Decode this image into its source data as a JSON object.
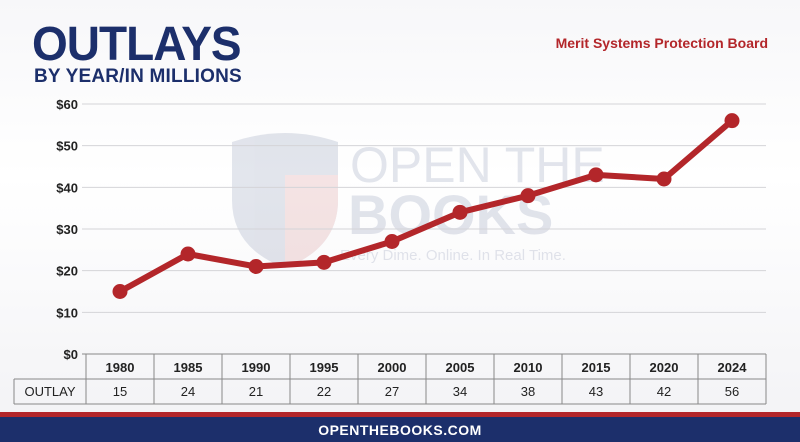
{
  "header": {
    "title": "OUTLAYS",
    "subtitle": "BY YEAR/IN MILLIONS",
    "agency": "Merit Systems Protection Board"
  },
  "watermark": {
    "line1": "OPEN THE",
    "line2": "BOOKS",
    "tagline": "Every Dime. Online. In Real Time."
  },
  "footer": {
    "text": "OPENTHEBOOKS.COM"
  },
  "colors": {
    "navy": "#1c2f6b",
    "red": "#b3262a",
    "grid": "#d4d4d8"
  },
  "chart_data": {
    "type": "line",
    "categories": [
      "1980",
      "1985",
      "1990",
      "1995",
      "2000",
      "2005",
      "2010",
      "2015",
      "2020",
      "2024"
    ],
    "values": [
      15,
      24,
      21,
      22,
      27,
      34,
      38,
      43,
      42,
      56
    ],
    "y_ticks": [
      "$0",
      "$10",
      "$20",
      "$30",
      "$40",
      "$50",
      "$60"
    ],
    "ylim": [
      0,
      60
    ],
    "table_row_label": "OUTLAY",
    "grid": true
  }
}
